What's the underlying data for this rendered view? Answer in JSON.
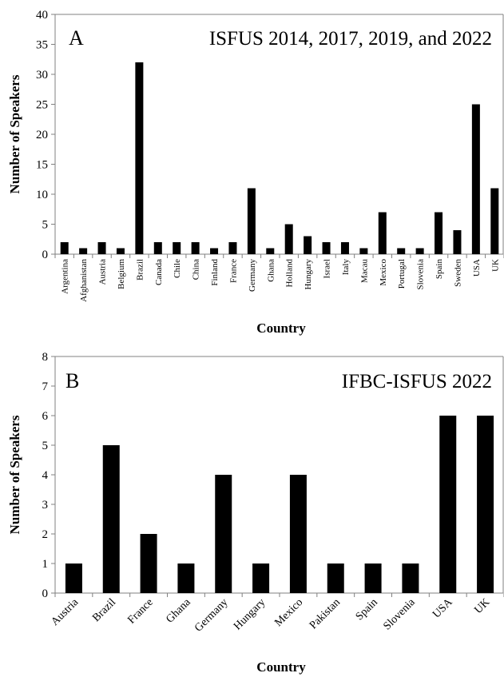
{
  "chart_data": [
    {
      "type": "bar",
      "panel_label": "A",
      "title": "ISFUS 2014, 2017, 2019, and 2022",
      "xlabel": "Country",
      "ylabel": "Number of Speakers",
      "ylim": [
        0,
        40
      ],
      "yticks": [
        "0",
        "5",
        "10",
        "15",
        "20",
        "25",
        "30",
        "35",
        "40"
      ],
      "grid": false,
      "legend": "none",
      "tick_rotation": "vertical",
      "categories": [
        "Argentina",
        "Afghanistan",
        "Austria",
        "Belgium",
        "Brazil",
        "Canada",
        "Chile",
        "China",
        "Finland",
        "France",
        "Germany",
        "Ghana",
        "Holland",
        "Hungary",
        "Israel",
        "Italy",
        "Macau",
        "Mexico",
        "Portugal",
        "Slovenia",
        "Spain",
        "Sweden",
        "USA",
        "UK"
      ],
      "values": [
        2,
        1,
        2,
        1,
        32,
        2,
        2,
        2,
        1,
        2,
        11,
        1,
        5,
        3,
        2,
        2,
        1,
        7,
        1,
        1,
        7,
        4,
        25,
        11
      ]
    },
    {
      "type": "bar",
      "panel_label": "B",
      "title": "IFBC-ISFUS 2022",
      "xlabel": "Country",
      "ylabel": "Number of Speakers",
      "ylim": [
        0,
        8
      ],
      "yticks": [
        "0",
        "1",
        "2",
        "3",
        "4",
        "5",
        "6",
        "7",
        "8"
      ],
      "grid": false,
      "legend": "none",
      "tick_rotation": "diagonal",
      "categories": [
        "Austria",
        "Brazil",
        "France",
        "Ghana",
        "Germany",
        "Hungary",
        "Mexico",
        "Pakistan",
        "Spain",
        "Slovenia",
        "USA",
        "UK"
      ],
      "values": [
        1,
        5,
        2,
        1,
        4,
        1,
        4,
        1,
        1,
        1,
        6,
        6
      ]
    }
  ],
  "style": {
    "bar_color": "#000000",
    "axis_color": "#808080"
  }
}
